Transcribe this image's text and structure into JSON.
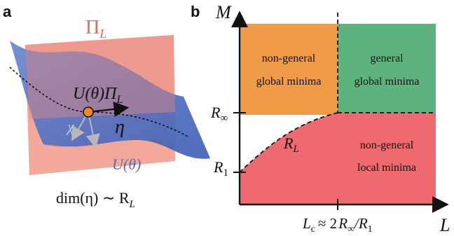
{
  "panel_a": {
    "label": "a",
    "plane_label": "Π",
    "plane_sub": "L",
    "map_label": "U(θ)Π",
    "map_sub": "L",
    "vector_label": "η",
    "chi_label": "χ",
    "surface_label": "U(θ)",
    "dim_label": "dim(η) ∼ R",
    "dim_sub": "L"
  },
  "panel_b": {
    "label": "b",
    "y_axis_label": "M",
    "x_axis_label": "L",
    "y_tick_upper": "R",
    "y_tick_upper_sub": "∞",
    "y_tick_lower": "R",
    "y_tick_lower_sub": "1",
    "curve_label": "R",
    "curve_sub": "L",
    "x_tick_label": "L",
    "x_tick_sub": "c",
    "x_tick_rel": "≈ 2",
    "x_tick_num": "R",
    "x_tick_num_sub": "∞",
    "x_tick_den": "/R",
    "x_tick_den_sub": "1",
    "regions": {
      "global_nongeneral": [
        "non-general",
        "global minima"
      ],
      "global_general": [
        "general",
        "global minima"
      ],
      "local_nongeneral": [
        "non-general",
        "local minima"
      ]
    },
    "colors": {
      "orange": "#EF9B48",
      "green": "#5DB37E",
      "red": "#EE6A6E"
    }
  },
  "colors": {
    "plane": "#F39F8F",
    "surface": "#4F71C2",
    "surface_label": "#4E6CC0",
    "point": "#F08A28",
    "chi": "#B8B8B8"
  }
}
